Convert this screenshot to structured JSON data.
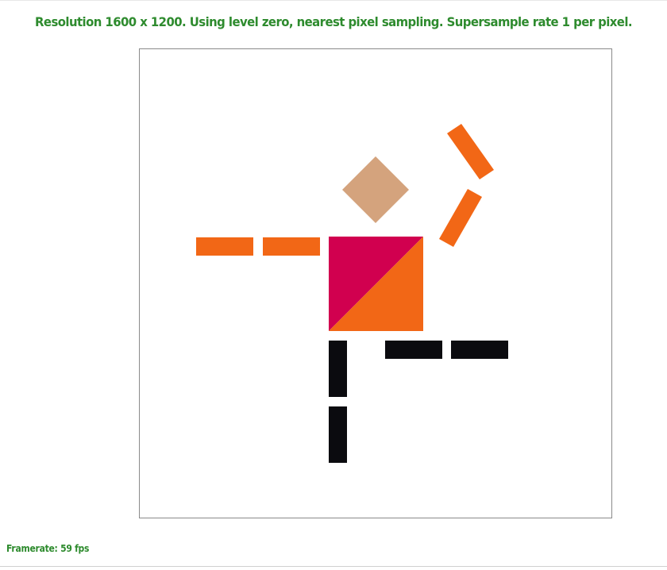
{
  "header": {
    "text": "Resolution 1600 x 1200. Using level zero, nearest pixel sampling. Supersample rate 1 per pixel."
  },
  "footer": {
    "framerate_text": "Framerate: 59 fps"
  },
  "colors": {
    "text": "#2e8b2e",
    "orange": "#f26716",
    "magenta": "#d1004f",
    "skin": "#d4a37d",
    "black": "#0b0b0f",
    "border": "#8a8a8a"
  },
  "figure": {
    "shapes": [
      "head-diamond",
      "torso-upper-triangle",
      "torso-lower-triangle",
      "left-arm-outer",
      "left-arm-inner",
      "right-arm-upper",
      "right-arm-lower",
      "left-leg-upper",
      "left-leg-lower",
      "right-leg-inner",
      "right-leg-outer"
    ]
  }
}
